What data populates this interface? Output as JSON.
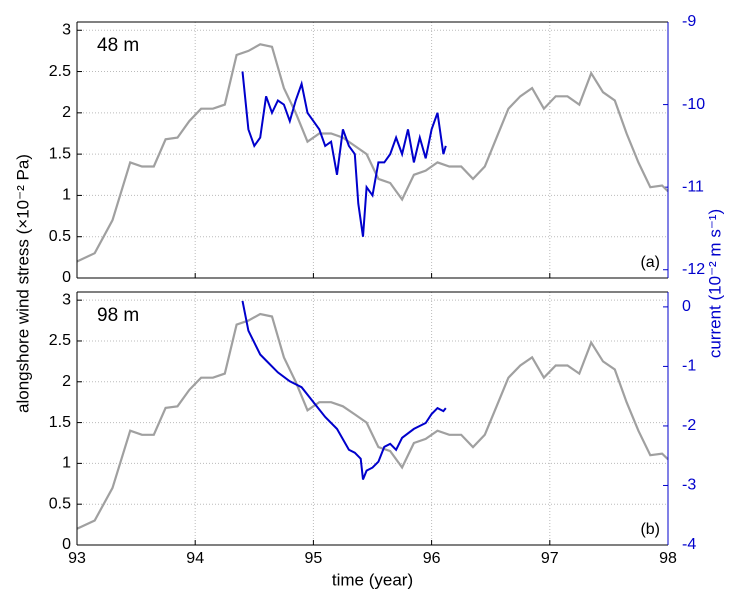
{
  "chart_data": [
    {
      "type": "line",
      "panel_label": "48 m",
      "corner_label": "(a)",
      "ylabel": "alongshore wind stress (×10⁻² Pa)",
      "y2label": "current (10⁻² m s⁻¹)",
      "xlim": [
        93,
        98
      ],
      "xticks": [
        93,
        94,
        95,
        96,
        97,
        98
      ],
      "show_xticklabels": false,
      "ylim": [
        0,
        3.1
      ],
      "yticks": [
        0,
        0.5,
        1,
        1.5,
        2,
        2.5,
        3
      ],
      "y2lim": [
        -12.1,
        -9
      ],
      "y2ticks": [
        -9,
        -10,
        -11,
        -12
      ],
      "grid": true,
      "series": [
        {
          "color": "#a0a0a0",
          "x": [
            93.0,
            93.15,
            93.3,
            93.45,
            93.55,
            93.65,
            93.75,
            93.85,
            93.95,
            94.05,
            94.15,
            94.25,
            94.35,
            94.45,
            94.55,
            94.65,
            94.75,
            94.85,
            94.95,
            95.05,
            95.15,
            95.25,
            95.35,
            95.45,
            95.55,
            95.65,
            95.75,
            95.85,
            95.95,
            96.05,
            96.15,
            96.25,
            96.35,
            96.45,
            96.55,
            96.65,
            96.75,
            96.85,
            96.95,
            97.05,
            97.15,
            97.25,
            97.35,
            97.45,
            97.55,
            97.65,
            97.75,
            97.85,
            97.95,
            98.0
          ],
          "values": [
            0.2,
            0.3,
            0.7,
            1.4,
            1.35,
            1.35,
            1.68,
            1.7,
            1.9,
            2.05,
            2.05,
            2.1,
            2.7,
            2.75,
            2.83,
            2.8,
            2.3,
            2.0,
            1.65,
            1.75,
            1.75,
            1.7,
            1.6,
            1.5,
            1.2,
            1.15,
            0.95,
            1.25,
            1.3,
            1.4,
            1.35,
            1.35,
            1.2,
            1.35,
            1.7,
            2.05,
            2.2,
            2.3,
            2.05,
            2.2,
            2.2,
            2.1,
            2.48,
            2.25,
            2.15,
            1.75,
            1.4,
            1.1,
            1.12,
            1.05
          ]
        },
        {
          "color": "#0000cc",
          "axis": "y2",
          "x": [
            94.4,
            94.45,
            94.5,
            94.55,
            94.6,
            94.65,
            94.7,
            94.75,
            94.8,
            94.85,
            94.9,
            94.95,
            95.0,
            95.05,
            95.1,
            95.15,
            95.2,
            95.25,
            95.3,
            95.35,
            95.38,
            95.42,
            95.45,
            95.5,
            95.55,
            95.6,
            95.65,
            95.7,
            95.75,
            95.8,
            95.85,
            95.9,
            95.95,
            96.0,
            96.05,
            96.1,
            96.12
          ],
          "values": [
            -9.6,
            -10.3,
            -10.5,
            -10.4,
            -9.9,
            -10.1,
            -9.95,
            -10.0,
            -10.2,
            -9.95,
            -9.75,
            -10.1,
            -10.2,
            -10.3,
            -10.5,
            -10.45,
            -10.85,
            -10.3,
            -10.5,
            -10.6,
            -11.2,
            -11.6,
            -11.0,
            -11.1,
            -10.7,
            -10.7,
            -10.6,
            -10.4,
            -10.6,
            -10.3,
            -10.7,
            -10.4,
            -10.65,
            -10.3,
            -10.1,
            -10.6,
            -10.5
          ]
        }
      ]
    },
    {
      "type": "line",
      "panel_label": "98 m",
      "corner_label": "(b)",
      "xlabel": "time (year)",
      "xlim": [
        93,
        98
      ],
      "xticks": [
        93,
        94,
        95,
        96,
        97,
        98
      ],
      "show_xticklabels": true,
      "ylim": [
        0,
        3.1
      ],
      "yticks": [
        0,
        0.5,
        1,
        1.5,
        2,
        2.5,
        3
      ],
      "y2lim": [
        -4,
        0.25
      ],
      "y2ticks": [
        0,
        -1,
        -2,
        -3,
        -4
      ],
      "grid": true,
      "series": [
        {
          "color": "#a0a0a0",
          "x": [
            93.0,
            93.15,
            93.3,
            93.45,
            93.55,
            93.65,
            93.75,
            93.85,
            93.95,
            94.05,
            94.15,
            94.25,
            94.35,
            94.45,
            94.55,
            94.65,
            94.75,
            94.85,
            94.95,
            95.05,
            95.15,
            95.25,
            95.35,
            95.45,
            95.55,
            95.65,
            95.75,
            95.85,
            95.95,
            96.05,
            96.15,
            96.25,
            96.35,
            96.45,
            96.55,
            96.65,
            96.75,
            96.85,
            96.95,
            97.05,
            97.15,
            97.25,
            97.35,
            97.45,
            97.55,
            97.65,
            97.75,
            97.85,
            97.95,
            98.0
          ],
          "values": [
            0.2,
            0.3,
            0.7,
            1.4,
            1.35,
            1.35,
            1.68,
            1.7,
            1.9,
            2.05,
            2.05,
            2.1,
            2.7,
            2.75,
            2.83,
            2.8,
            2.3,
            2.0,
            1.65,
            1.75,
            1.75,
            1.7,
            1.6,
            1.5,
            1.2,
            1.15,
            0.95,
            1.25,
            1.3,
            1.4,
            1.35,
            1.35,
            1.2,
            1.35,
            1.7,
            2.05,
            2.2,
            2.3,
            2.05,
            2.2,
            2.2,
            2.1,
            2.48,
            2.25,
            2.15,
            1.75,
            1.4,
            1.1,
            1.12,
            1.05
          ]
        },
        {
          "color": "#0000cc",
          "axis": "y2",
          "x": [
            94.4,
            94.45,
            94.5,
            94.55,
            94.6,
            94.7,
            94.8,
            94.9,
            95.0,
            95.1,
            95.2,
            95.3,
            95.35,
            95.4,
            95.42,
            95.45,
            95.5,
            95.55,
            95.6,
            95.65,
            95.7,
            95.75,
            95.85,
            95.95,
            96.0,
            96.05,
            96.1,
            96.12
          ],
          "values": [
            0.1,
            -0.4,
            -0.6,
            -0.8,
            -0.9,
            -1.1,
            -1.25,
            -1.35,
            -1.6,
            -1.85,
            -2.05,
            -2.4,
            -2.45,
            -2.55,
            -2.9,
            -2.75,
            -2.7,
            -2.6,
            -2.35,
            -2.3,
            -2.4,
            -2.2,
            -2.05,
            -1.95,
            -1.8,
            -1.7,
            -1.75,
            -1.7
          ]
        }
      ]
    }
  ]
}
